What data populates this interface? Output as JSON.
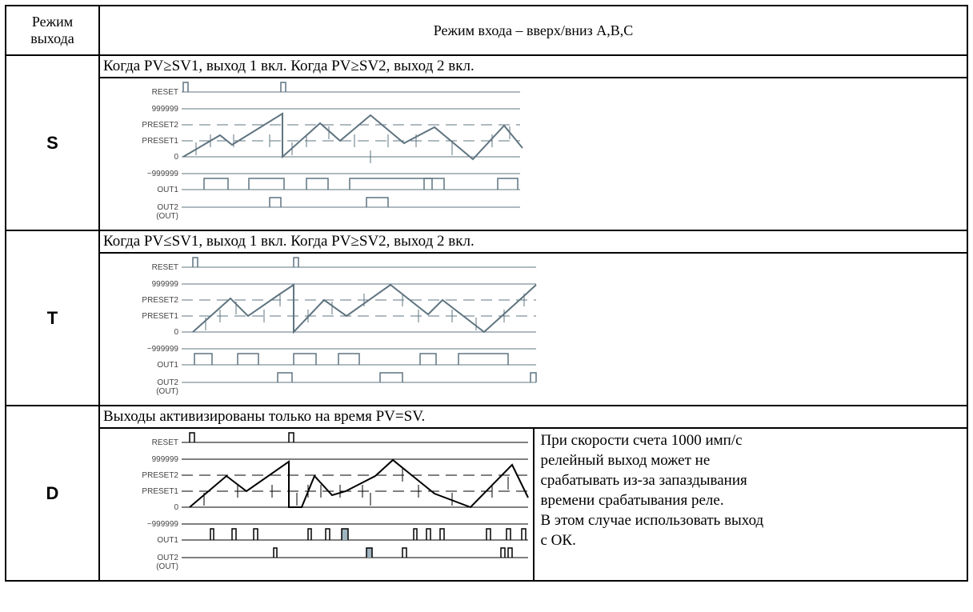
{
  "header": {
    "col1": [
      "Режим",
      "выхода"
    ],
    "col2": "Режим входа – вверх/вниз A,B,C"
  },
  "rows": [
    {
      "mode": "S",
      "description": "Когда PV≥SV1, выход 1 вкл. Когда PV≥SV2, выход 2 вкл."
    },
    {
      "mode": "T",
      "description": "Когда PV≤SV1, выход 1 вкл. Когда PV≥SV2, выход 2 вкл."
    },
    {
      "mode": "D",
      "description": "Выходы активизированы только на время PV=SV.",
      "note": [
        "При скорости счета 1000 имп/с",
        "релейный выход может не",
        "срабатывать из-за запаздывания",
        "времени срабатывания  реле.",
        "В этом случае использовать выход",
        "с ОК."
      ]
    }
  ],
  "diagram_labels": {
    "reset": "RESET",
    "max": "999999",
    "preset2": "PRESET2",
    "preset1": "PRESET1",
    "zero": "0",
    "min": "−999999",
    "out1": "OUT1",
    "out2": "OUT2",
    "out": "(OUT)"
  },
  "colors": {
    "diagram_line": "#5f7480",
    "diagram_line_d": "#000000",
    "highlight": "#9fb4c0"
  }
}
